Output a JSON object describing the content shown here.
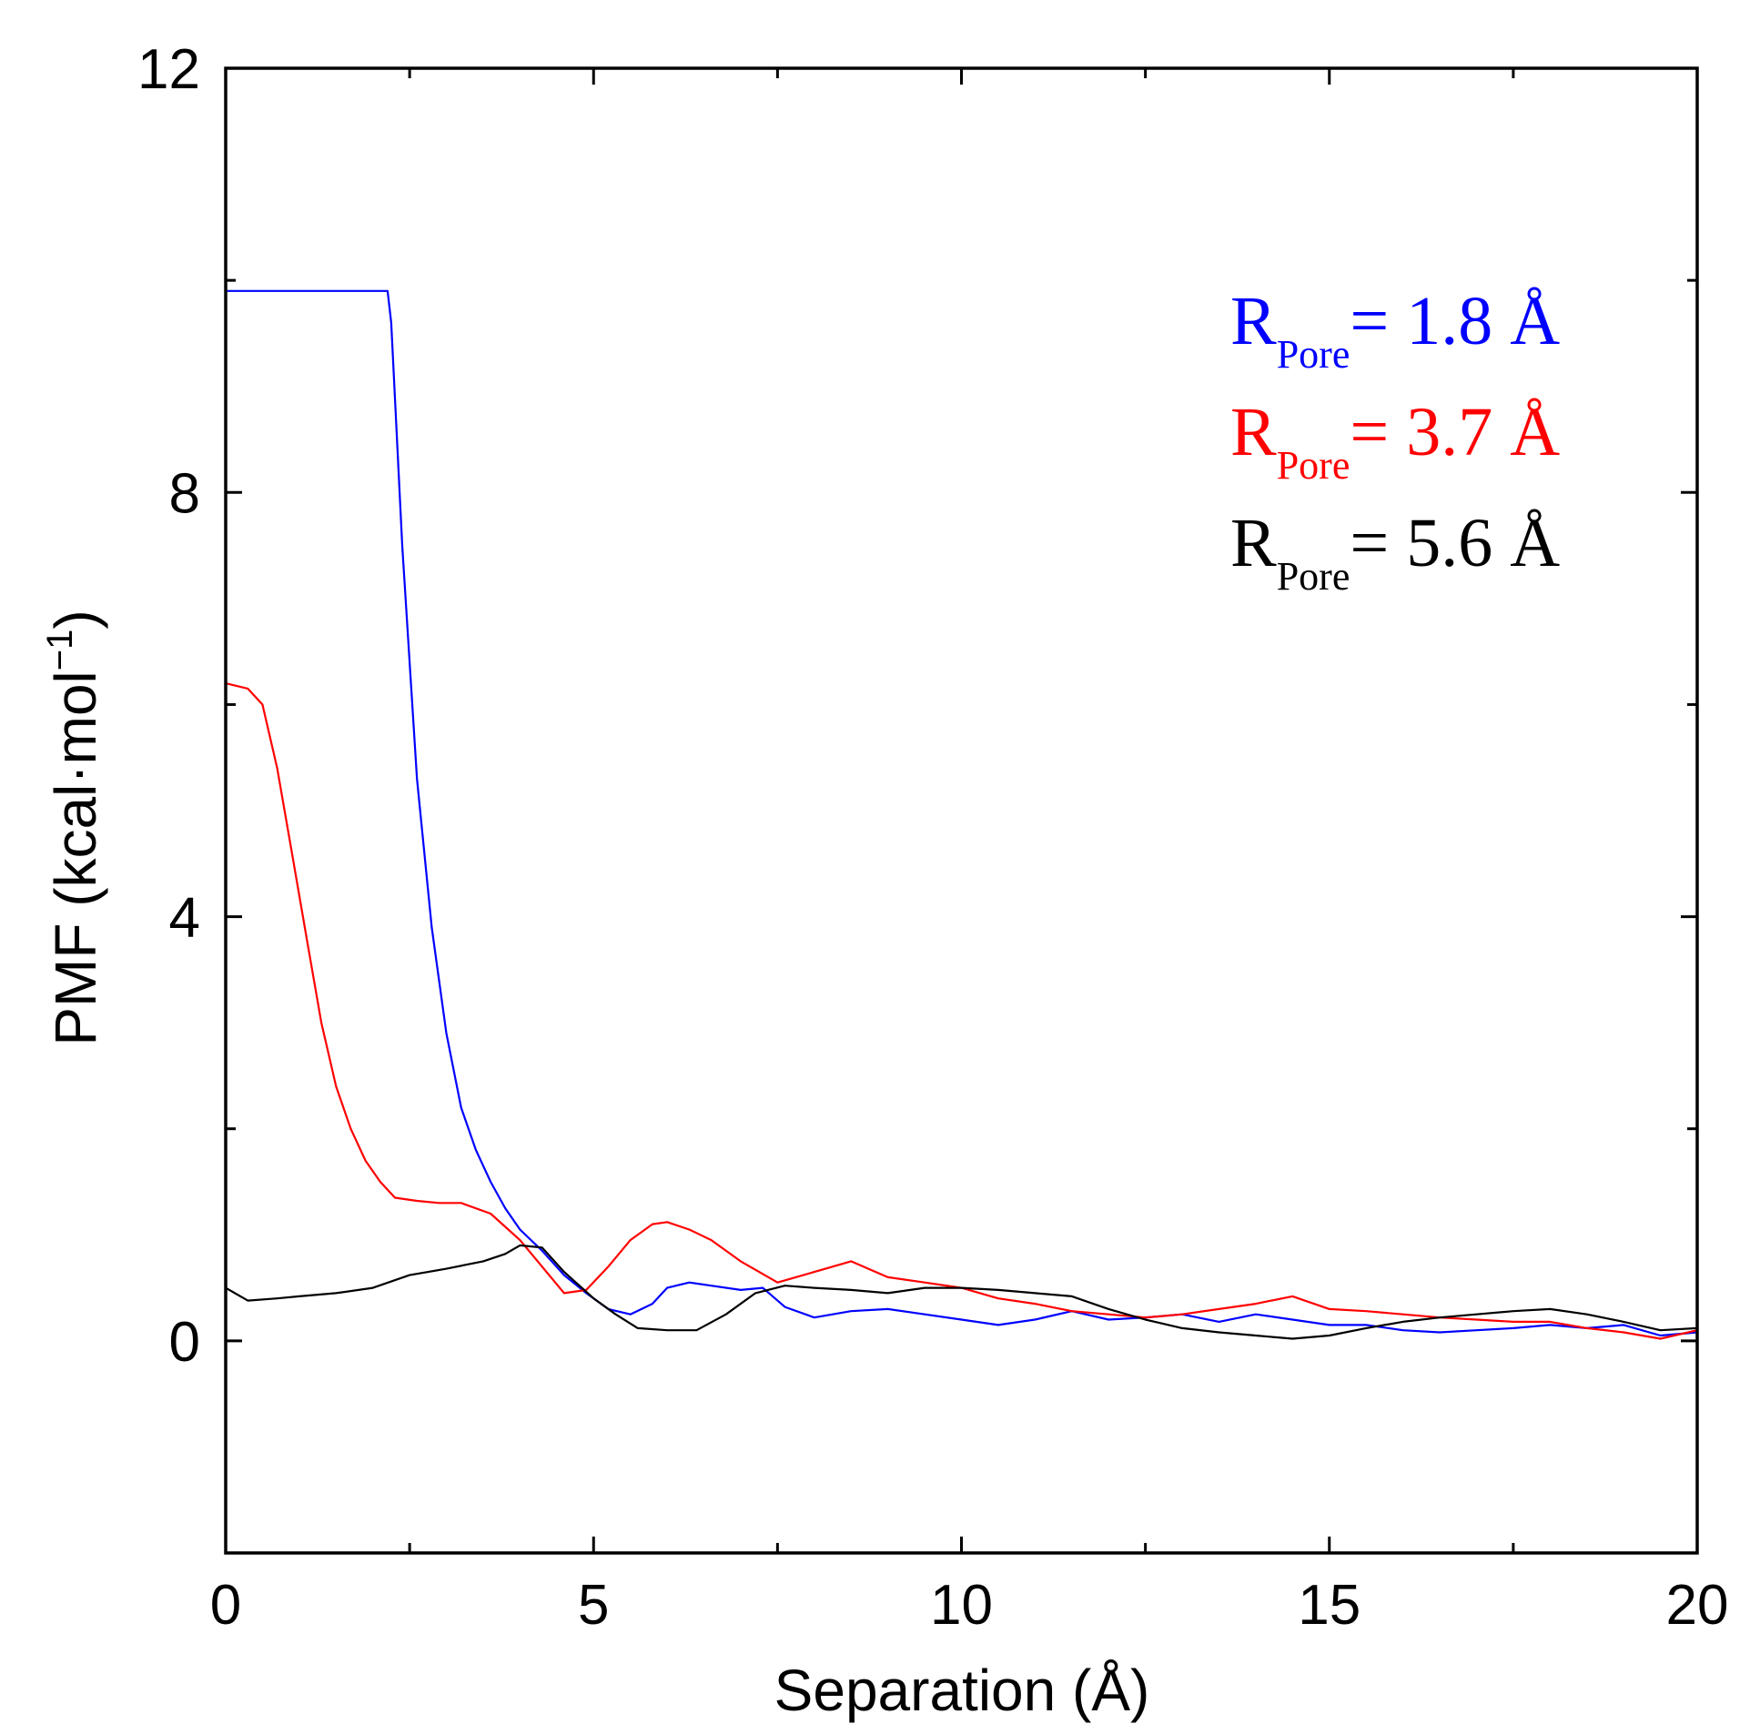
{
  "chart_data": {
    "type": "line",
    "title": "",
    "xlabel": "Separation (Å)",
    "ylabel_main": "PMF (kcal·mol",
    "ylabel_sup": "−1",
    "ylabel_close": ")",
    "xlim": [
      0,
      20
    ],
    "ylim": [
      -2,
      12
    ],
    "x_ticks": [
      0,
      5,
      10,
      15,
      20
    ],
    "x_tick_labels": [
      "0",
      "5",
      "10",
      "15",
      "20"
    ],
    "x_minor_ticks": [
      2.5,
      7.5,
      12.5,
      17.5
    ],
    "y_ticks": [
      0,
      4,
      8,
      12
    ],
    "y_tick_labels": [
      "0",
      "4",
      "8",
      "12"
    ],
    "y_minor_ticks": [
      2,
      6,
      10
    ],
    "grid": false,
    "legend_position": "top-right",
    "series": [
      {
        "name": "R_Pore = 1.8 Å",
        "legend_r": "R",
        "legend_sub": "Pore",
        "legend_value": "= 1.8 Å",
        "color": "#0000ff",
        "x": [
          0,
          2.2,
          2.25,
          2.4,
          2.6,
          2.8,
          3.0,
          3.2,
          3.4,
          3.6,
          3.8,
          4.0,
          4.3,
          4.6,
          4.9,
          5.2,
          5.5,
          5.8,
          6.0,
          6.3,
          6.6,
          7.0,
          7.3,
          7.6,
          8.0,
          8.5,
          9.0,
          9.5,
          10.0,
          10.5,
          11.0,
          11.5,
          12.0,
          12.5,
          13.0,
          13.5,
          14.0,
          14.5,
          15.0,
          15.5,
          16.0,
          16.5,
          17.0,
          17.5,
          18.0,
          18.5,
          19.0,
          19.5,
          20.0
        ],
        "values": [
          9.9,
          9.9,
          9.6,
          7.5,
          5.3,
          3.9,
          2.9,
          2.2,
          1.8,
          1.5,
          1.25,
          1.05,
          0.85,
          0.62,
          0.45,
          0.3,
          0.25,
          0.35,
          0.5,
          0.55,
          0.52,
          0.48,
          0.5,
          0.32,
          0.22,
          0.28,
          0.3,
          0.25,
          0.2,
          0.15,
          0.2,
          0.28,
          0.2,
          0.22,
          0.25,
          0.18,
          0.25,
          0.2,
          0.15,
          0.15,
          0.1,
          0.08,
          0.1,
          0.12,
          0.15,
          0.12,
          0.15,
          0.05,
          0.08
        ]
      },
      {
        "name": "R_Pore = 3.7 Å",
        "legend_r": "R",
        "legend_sub": "Pore",
        "legend_value": "= 3.7 Å",
        "color": "#ff0000",
        "x": [
          0,
          0.3,
          0.5,
          0.7,
          0.9,
          1.1,
          1.3,
          1.5,
          1.7,
          1.9,
          2.1,
          2.3,
          2.6,
          2.9,
          3.2,
          3.6,
          4.0,
          4.3,
          4.6,
          4.9,
          5.2,
          5.5,
          5.8,
          6.0,
          6.3,
          6.6,
          7.0,
          7.5,
          8.0,
          8.5,
          9.0,
          9.5,
          10.0,
          10.5,
          11.0,
          11.5,
          12.0,
          12.5,
          13.0,
          13.5,
          14.0,
          14.5,
          15.0,
          15.5,
          16.0,
          16.5,
          17.0,
          17.5,
          18.0,
          18.5,
          19.0,
          19.5,
          20.0
        ],
        "values": [
          6.2,
          6.15,
          6.0,
          5.4,
          4.6,
          3.8,
          3.0,
          2.4,
          2.0,
          1.7,
          1.5,
          1.35,
          1.32,
          1.3,
          1.3,
          1.2,
          0.95,
          0.7,
          0.45,
          0.48,
          0.7,
          0.95,
          1.1,
          1.12,
          1.05,
          0.95,
          0.75,
          0.55,
          0.65,
          0.75,
          0.6,
          0.55,
          0.5,
          0.4,
          0.35,
          0.28,
          0.25,
          0.22,
          0.25,
          0.3,
          0.35,
          0.42,
          0.3,
          0.28,
          0.25,
          0.22,
          0.2,
          0.18,
          0.18,
          0.12,
          0.08,
          0.02,
          0.1
        ]
      },
      {
        "name": "R_Pore = 5.6 Å",
        "legend_r": "R",
        "legend_sub": "Pore",
        "legend_value": "= 5.6 Å",
        "color": "#000000",
        "x": [
          0,
          0.3,
          0.7,
          1.0,
          1.5,
          2.0,
          2.5,
          3.0,
          3.5,
          3.8,
          4.0,
          4.3,
          4.6,
          5.0,
          5.3,
          5.6,
          6.0,
          6.4,
          6.8,
          7.2,
          7.6,
          8.0,
          8.5,
          9.0,
          9.5,
          10.0,
          10.5,
          11.0,
          11.5,
          12.0,
          12.5,
          13.0,
          13.5,
          14.0,
          14.5,
          15.0,
          15.5,
          16.0,
          16.5,
          17.0,
          17.5,
          18.0,
          18.5,
          19.0,
          19.5,
          20.0
        ],
        "values": [
          0.5,
          0.38,
          0.4,
          0.42,
          0.45,
          0.5,
          0.62,
          0.68,
          0.75,
          0.82,
          0.9,
          0.88,
          0.65,
          0.4,
          0.25,
          0.12,
          0.1,
          0.1,
          0.25,
          0.45,
          0.52,
          0.5,
          0.48,
          0.45,
          0.5,
          0.5,
          0.48,
          0.45,
          0.42,
          0.3,
          0.2,
          0.12,
          0.08,
          0.05,
          0.02,
          0.05,
          0.12,
          0.18,
          0.22,
          0.25,
          0.28,
          0.3,
          0.25,
          0.18,
          0.1,
          0.12
        ]
      }
    ]
  }
}
